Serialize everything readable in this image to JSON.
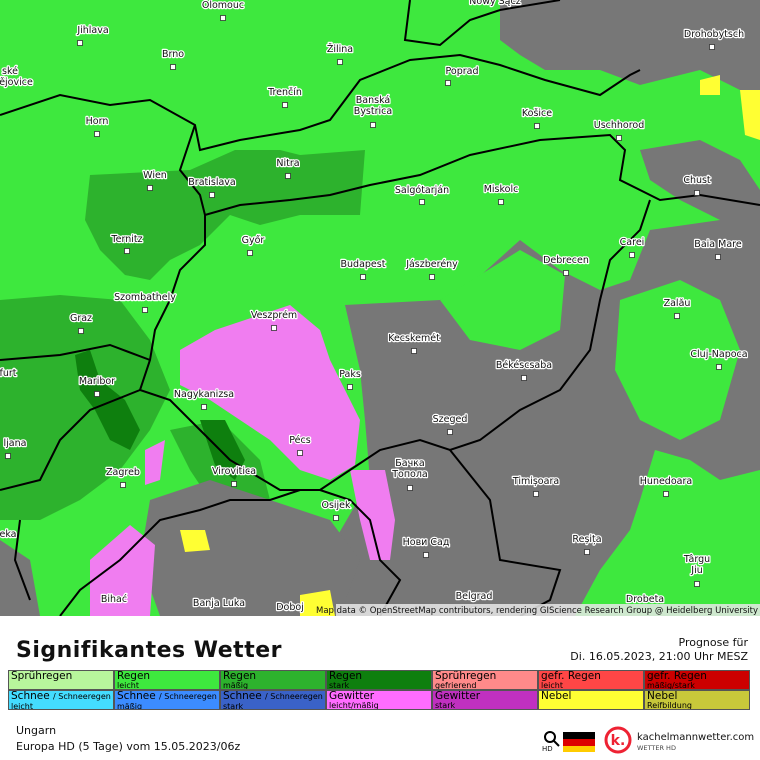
{
  "map": {
    "cities": [
      [
        "Olomouc"
      ],
      [
        "Nowy Sącz"
      ],
      [
        "Jihlava"
      ],
      [
        "Brno"
      ],
      [
        "Žilina"
      ],
      [
        "Poprad"
      ],
      [
        "Drohobytsch"
      ],
      [
        "ské"
      ],
      [
        "ějovice"
      ],
      [
        "Trenčín"
      ],
      [
        "Banská",
        "Bystrica"
      ],
      [
        "Košice"
      ],
      [
        "Uschhorod"
      ],
      [
        "Horn"
      ],
      [
        "Nitra"
      ],
      [
        "Wien"
      ],
      [
        "Bratislava"
      ],
      [
        "Chust"
      ],
      [
        "Salgótarján"
      ],
      [
        "Miskolc"
      ],
      [
        "Ternitz"
      ],
      [
        "Győr"
      ],
      [
        "Carei"
      ],
      [
        "Baia Mare"
      ],
      [
        "Debrecen"
      ],
      [
        "Budapest"
      ],
      [
        "Jászberény"
      ],
      [
        "Zalău"
      ],
      [
        "Szombathely"
      ],
      [
        "Graz"
      ],
      [
        "Veszprém"
      ],
      [
        "Kecskemét"
      ],
      [
        "Cluj-Napoca"
      ],
      [
        "Békéscsaba"
      ],
      [
        "furt"
      ],
      [
        "Paks"
      ],
      [
        "Maribor"
      ],
      [
        "Nagykanizsa"
      ],
      [
        "Szeged"
      ],
      [
        "ljana"
      ],
      [
        "Pécs"
      ],
      [
        "Бачка",
        "Топола"
      ],
      [
        "Virovitica"
      ],
      [
        "Zagreb"
      ],
      [
        "Timișoara"
      ],
      [
        "Hunedoara"
      ],
      [
        "Osijek"
      ],
      [
        "eka"
      ],
      [
        "Нови Сад"
      ],
      [
        "Reșița"
      ],
      [
        "Târgu",
        "Jiu"
      ],
      [
        "Belgrad"
      ],
      [
        "Bihać"
      ],
      [
        "Banja Luka"
      ],
      [
        "Doboj"
      ],
      [
        "Drobeta"
      ]
    ],
    "attribution": "Map data © OpenStreetMap contributors, rendering GIScience Research Group @ Heidelberg University"
  },
  "footer": {
    "title": "Signifikantes Wetter",
    "forecast_label": "Prognose für",
    "forecast_time": "Di. 16.05.2023, 21:00 Uhr MESZ",
    "region": "Ungarn",
    "model": "Europa HD (5 Tage) vom  15.05.2023/06z",
    "zoom_label": "HD",
    "logo_name": "kachelmannwetter.com",
    "logo_sub": "WETTER HD"
  },
  "legend": [
    [
      {
        "label": "Sprühregen",
        "color": "#b8f59c"
      },
      {
        "label": "Regen",
        "sub": "leicht",
        "color": "#3ee83e"
      },
      {
        "label": "Regen",
        "sub": "mäßig",
        "color": "#2db22d"
      },
      {
        "label": "Regen",
        "sub": "stark",
        "color": "#0e7f0e"
      },
      {
        "label": "Sprühregen",
        "sub": "gefrierend",
        "color": "#ff8a8a"
      },
      {
        "label": "gefr. Regen",
        "sub": "leicht",
        "color": "#ff4646"
      },
      {
        "label": "gefr. Regen",
        "sub": "mäßig/stark",
        "color": "#cc0000"
      }
    ],
    [
      {
        "label": "Schnee",
        "note": "/ Schneeregen",
        "sub": "leicht",
        "color": "#44dcff"
      },
      {
        "label": "Schnee",
        "note": "/ Schneeregen",
        "sub": "mäßig",
        "color": "#3c8cff"
      },
      {
        "label": "Schnee",
        "note": "/ Schneeregen",
        "sub": "stark",
        "color": "#3a62c8"
      },
      {
        "label": "Gewitter",
        "sub": "leicht/mäßig",
        "color": "#ff6cff"
      },
      {
        "label": "Gewitter",
        "sub": "stark",
        "color": "#c030c0"
      },
      {
        "label": "Nebel",
        "color": "#ffff33"
      },
      {
        "label": "Nebel",
        "sub": "Reifbildung",
        "color": "#c8c83a"
      }
    ]
  ]
}
